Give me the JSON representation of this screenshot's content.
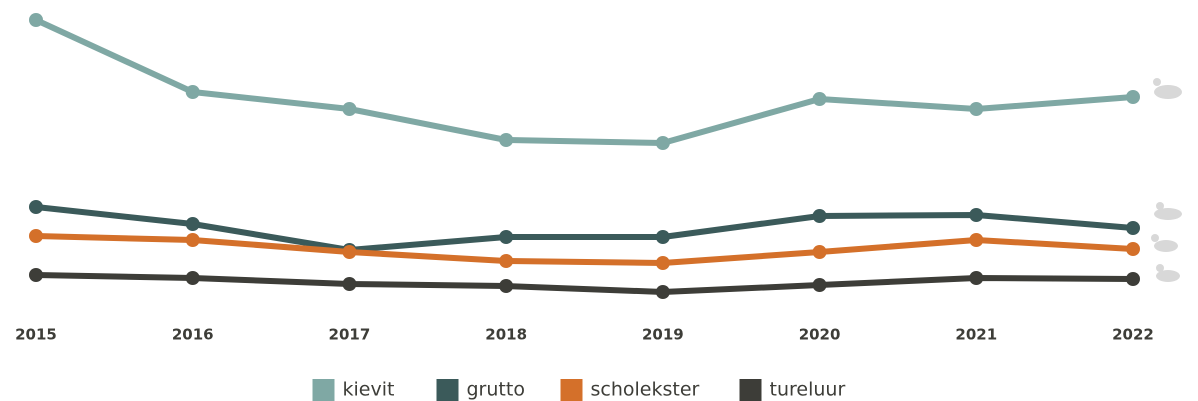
{
  "chart_data": {
    "type": "line",
    "categories": [
      "2015",
      "2016",
      "2017",
      "2018",
      "2019",
      "2020",
      "2021",
      "2022"
    ],
    "ylim": [
      0,
      300
    ],
    "series": [
      {
        "name": "kievit",
        "color": "#7fa8a4",
        "values": [
          290,
          218,
          201,
          170,
          167,
          211,
          201,
          213
        ]
      },
      {
        "name": "grutto",
        "color": "#3b5a5a",
        "values": [
          103,
          86,
          60,
          73,
          73,
          94,
          95,
          82
        ]
      },
      {
        "name": "scholekster",
        "color": "#d4702a",
        "values": [
          74,
          70,
          58,
          49,
          47,
          58,
          70,
          61
        ]
      },
      {
        "name": "tureluur",
        "color": "#3d3d38",
        "values": [
          35,
          32,
          26,
          24,
          18,
          25,
          32,
          31
        ]
      }
    ]
  }
}
